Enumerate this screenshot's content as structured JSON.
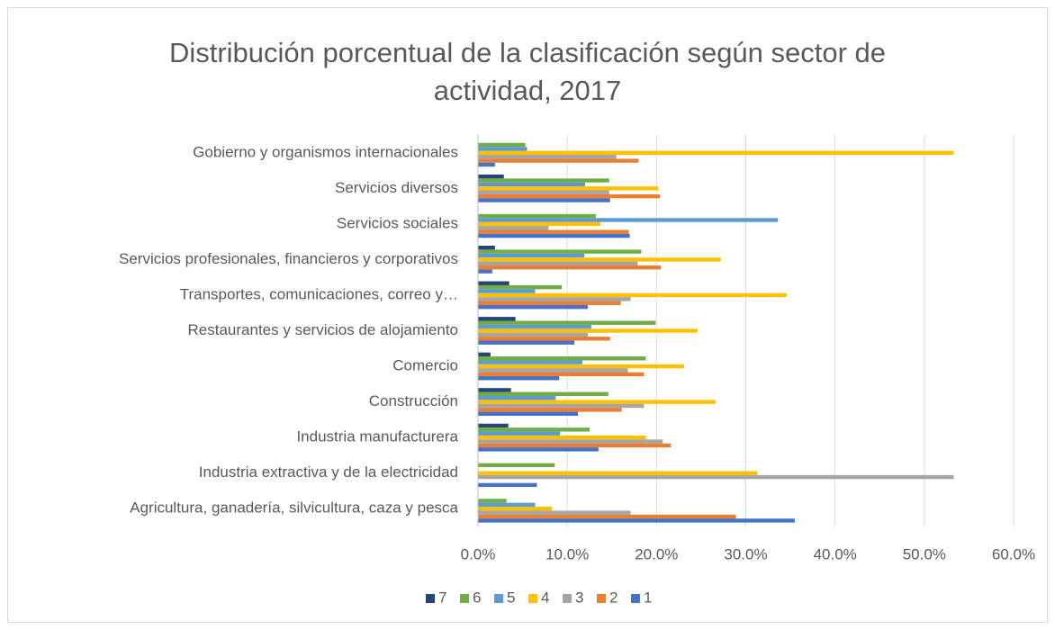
{
  "chart_data": {
    "type": "bar",
    "orientation": "horizontal",
    "title": "Distribución porcentual de la clasificación según sector de actividad, 2017",
    "categories": [
      "Gobierno y organismos internacionales",
      "Servicios diversos",
      "Servicios sociales",
      "Servicios profesionales, financieros y corporativos",
      "Transportes, comunicaciones, correo y…",
      "Restaurantes y servicios de alojamiento",
      "Comercio",
      "Construcción",
      "Industria manufacturera",
      "Industria extractiva y de la electricidad",
      "Agricultura, ganadería, silvicultura, caza y pesca"
    ],
    "series": [
      {
        "name": "7",
        "color": "#264478",
        "values": [
          0,
          2.9,
          0,
          1.9,
          3.5,
          4.2,
          1.4,
          3.7,
          3.4,
          0,
          0
        ]
      },
      {
        "name": "6",
        "color": "#70ad47",
        "values": [
          5.3,
          14.7,
          13.2,
          18.3,
          9.4,
          19.9,
          18.8,
          14.6,
          12.5,
          8.6,
          3.2
        ]
      },
      {
        "name": "5",
        "color": "#5b9bd5",
        "values": [
          5.5,
          12.0,
          33.6,
          11.9,
          6.4,
          12.7,
          11.7,
          8.7,
          9.2,
          0,
          6.4
        ]
      },
      {
        "name": "4",
        "color": "#ffc000",
        "values": [
          53.3,
          20.2,
          13.7,
          27.2,
          34.6,
          24.6,
          23.1,
          26.6,
          18.8,
          31.3,
          8.3
        ]
      },
      {
        "name": "3",
        "color": "#a5a5a5",
        "values": [
          15.5,
          14.7,
          7.9,
          17.9,
          17.1,
          12.3,
          16.8,
          18.6,
          20.7,
          53.3,
          17.1
        ]
      },
      {
        "name": "2",
        "color": "#ed7d31",
        "values": [
          18.0,
          20.4,
          16.9,
          20.5,
          16.0,
          14.8,
          18.6,
          16.1,
          21.6,
          0,
          28.9
        ]
      },
      {
        "name": "1",
        "color": "#4472c4",
        "values": [
          1.9,
          14.8,
          17.0,
          1.6,
          12.3,
          10.8,
          9.1,
          11.2,
          13.5,
          6.6,
          35.5
        ]
      }
    ],
    "xlim": [
      0,
      60
    ],
    "xticks": [
      {
        "value": 0,
        "label": "0.0%"
      },
      {
        "value": 10,
        "label": "10.0%"
      },
      {
        "value": 20,
        "label": "20.0%"
      },
      {
        "value": 30,
        "label": "30.0%"
      },
      {
        "value": 40,
        "label": "40.0%"
      },
      {
        "value": 50,
        "label": "50.0%"
      },
      {
        "value": 60,
        "label": "60.0%"
      }
    ],
    "grid": true,
    "legend": "bottom"
  }
}
